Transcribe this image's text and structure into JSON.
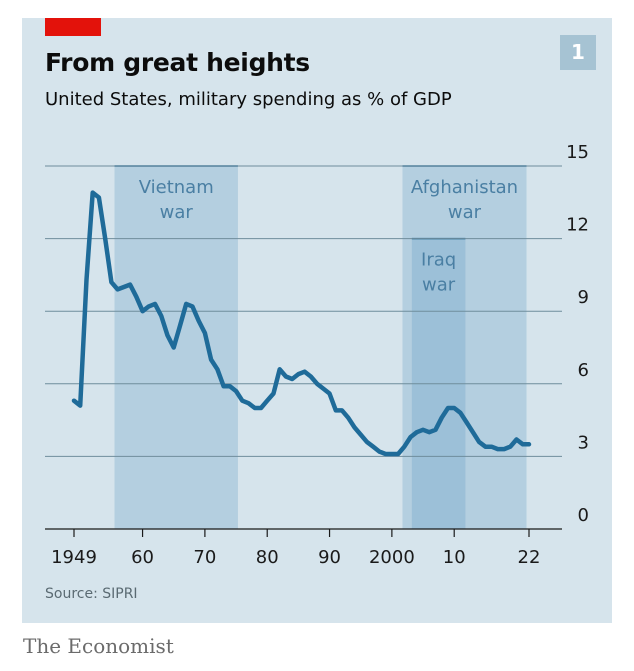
{
  "chart_data": {
    "type": "line",
    "title": "From great heights",
    "subtitle": "United States, military spending as % of GDP",
    "chart_number": "1",
    "source": "Source: SIPRI",
    "publisher": "The Economist",
    "xlabel": "",
    "ylabel": "",
    "xlim": [
      1949,
      2022
    ],
    "ylim": [
      0,
      15
    ],
    "x_ticks": [
      1949,
      1960,
      1970,
      1980,
      1990,
      2000,
      2010,
      2022
    ],
    "x_tick_labels": [
      "1949",
      "60",
      "70",
      "80",
      "90",
      "2000",
      "10",
      "22"
    ],
    "y_ticks": [
      0,
      3,
      6,
      9,
      12,
      15
    ],
    "y_tick_labels": [
      "0",
      "3",
      "6",
      "9",
      "12",
      "15"
    ],
    "grid": true,
    "line_color": "#1f6b99",
    "shaded_periods": [
      {
        "label": [
          "Vietnam",
          "war"
        ],
        "start": 1955.5,
        "end": 1975.3,
        "top": 15
      },
      {
        "label": [
          "Afghanistan",
          "war"
        ],
        "start": 2001.7,
        "end": 2021.6,
        "top": 15
      },
      {
        "label": [
          "Iraq",
          "war"
        ],
        "start": 2003.2,
        "end": 2011.8,
        "top": 12
      }
    ],
    "series": [
      {
        "values": [
          [
            1949,
            5.3
          ],
          [
            1950,
            5.1
          ],
          [
            1951,
            10.3
          ],
          [
            1952,
            13.9
          ],
          [
            1953,
            13.7
          ],
          [
            1954,
            12.0
          ],
          [
            1955,
            10.2
          ],
          [
            1956,
            9.9
          ],
          [
            1957,
            10.0
          ],
          [
            1958,
            10.1
          ],
          [
            1959,
            9.6
          ],
          [
            1960,
            9.0
          ],
          [
            1961,
            9.2
          ],
          [
            1962,
            9.3
          ],
          [
            1963,
            8.8
          ],
          [
            1964,
            8.0
          ],
          [
            1965,
            7.5
          ],
          [
            1966,
            8.4
          ],
          [
            1967,
            9.3
          ],
          [
            1968,
            9.2
          ],
          [
            1969,
            8.6
          ],
          [
            1970,
            8.1
          ],
          [
            1971,
            7.0
          ],
          [
            1972,
            6.6
          ],
          [
            1973,
            5.9
          ],
          [
            1974,
            5.9
          ],
          [
            1975,
            5.7
          ],
          [
            1976,
            5.3
          ],
          [
            1977,
            5.2
          ],
          [
            1978,
            5.0
          ],
          [
            1979,
            5.0
          ],
          [
            1980,
            5.3
          ],
          [
            1981,
            5.6
          ],
          [
            1982,
            6.6
          ],
          [
            1983,
            6.3
          ],
          [
            1984,
            6.2
          ],
          [
            1985,
            6.4
          ],
          [
            1986,
            6.5
          ],
          [
            1987,
            6.3
          ],
          [
            1988,
            6.0
          ],
          [
            1989,
            5.8
          ],
          [
            1990,
            5.6
          ],
          [
            1991,
            4.9
          ],
          [
            1992,
            4.9
          ],
          [
            1993,
            4.6
          ],
          [
            1994,
            4.2
          ],
          [
            1995,
            3.9
          ],
          [
            1996,
            3.6
          ],
          [
            1997,
            3.4
          ],
          [
            1998,
            3.2
          ],
          [
            1999,
            3.1
          ],
          [
            2000,
            3.1
          ],
          [
            2001,
            3.1
          ],
          [
            2002,
            3.4
          ],
          [
            2003,
            3.8
          ],
          [
            2004,
            4.0
          ],
          [
            2005,
            4.1
          ],
          [
            2006,
            4.0
          ],
          [
            2007,
            4.1
          ],
          [
            2008,
            4.6
          ],
          [
            2009,
            5.0
          ],
          [
            2010,
            5.0
          ],
          [
            2011,
            4.8
          ],
          [
            2012,
            4.4
          ],
          [
            2013,
            4.0
          ],
          [
            2014,
            3.6
          ],
          [
            2015,
            3.4
          ],
          [
            2016,
            3.4
          ],
          [
            2017,
            3.3
          ],
          [
            2018,
            3.3
          ],
          [
            2019,
            3.4
          ],
          [
            2020,
            3.7
          ],
          [
            2021,
            3.5
          ],
          [
            2022,
            3.5
          ]
        ]
      }
    ]
  }
}
